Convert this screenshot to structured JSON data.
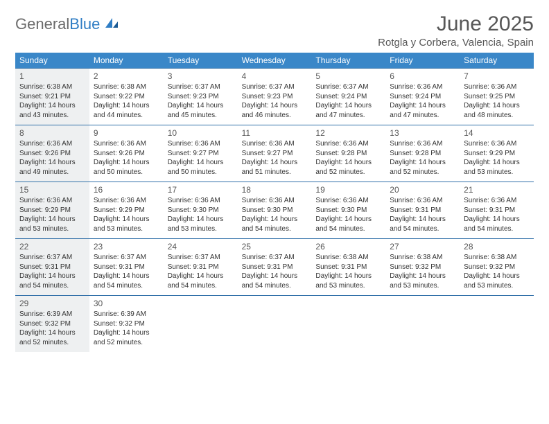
{
  "brand": {
    "part1": "General",
    "part2": "Blue"
  },
  "title": "June 2025",
  "location": "Rotgla y Corbera, Valencia, Spain",
  "colors": {
    "header_bg": "#3a87c8",
    "border": "#2f6fa8",
    "shaded_bg": "#eef0f1",
    "text": "#333333",
    "title_text": "#575757",
    "logo_gray": "#6b6b6b",
    "logo_blue": "#2f7dc4",
    "background": "#ffffff"
  },
  "typography": {
    "title_fontsize": 30,
    "location_fontsize": 15,
    "dayhead_fontsize": 12,
    "daynum_fontsize": 12,
    "body_fontsize": 10
  },
  "layout": {
    "columns": 7,
    "rows": 5,
    "cell_min_height": 82
  },
  "shaded_days": [
    1,
    8,
    15,
    22,
    29
  ],
  "weekdays": [
    "Sunday",
    "Monday",
    "Tuesday",
    "Wednesday",
    "Thursday",
    "Friday",
    "Saturday"
  ],
  "days": [
    {
      "n": 1,
      "sunrise": "6:38 AM",
      "sunset": "9:21 PM",
      "daylight": "14 hours and 43 minutes."
    },
    {
      "n": 2,
      "sunrise": "6:38 AM",
      "sunset": "9:22 PM",
      "daylight": "14 hours and 44 minutes."
    },
    {
      "n": 3,
      "sunrise": "6:37 AM",
      "sunset": "9:23 PM",
      "daylight": "14 hours and 45 minutes."
    },
    {
      "n": 4,
      "sunrise": "6:37 AM",
      "sunset": "9:23 PM",
      "daylight": "14 hours and 46 minutes."
    },
    {
      "n": 5,
      "sunrise": "6:37 AM",
      "sunset": "9:24 PM",
      "daylight": "14 hours and 47 minutes."
    },
    {
      "n": 6,
      "sunrise": "6:36 AM",
      "sunset": "9:24 PM",
      "daylight": "14 hours and 47 minutes."
    },
    {
      "n": 7,
      "sunrise": "6:36 AM",
      "sunset": "9:25 PM",
      "daylight": "14 hours and 48 minutes."
    },
    {
      "n": 8,
      "sunrise": "6:36 AM",
      "sunset": "9:26 PM",
      "daylight": "14 hours and 49 minutes."
    },
    {
      "n": 9,
      "sunrise": "6:36 AM",
      "sunset": "9:26 PM",
      "daylight": "14 hours and 50 minutes."
    },
    {
      "n": 10,
      "sunrise": "6:36 AM",
      "sunset": "9:27 PM",
      "daylight": "14 hours and 50 minutes."
    },
    {
      "n": 11,
      "sunrise": "6:36 AM",
      "sunset": "9:27 PM",
      "daylight": "14 hours and 51 minutes."
    },
    {
      "n": 12,
      "sunrise": "6:36 AM",
      "sunset": "9:28 PM",
      "daylight": "14 hours and 52 minutes."
    },
    {
      "n": 13,
      "sunrise": "6:36 AM",
      "sunset": "9:28 PM",
      "daylight": "14 hours and 52 minutes."
    },
    {
      "n": 14,
      "sunrise": "6:36 AM",
      "sunset": "9:29 PM",
      "daylight": "14 hours and 53 minutes."
    },
    {
      "n": 15,
      "sunrise": "6:36 AM",
      "sunset": "9:29 PM",
      "daylight": "14 hours and 53 minutes."
    },
    {
      "n": 16,
      "sunrise": "6:36 AM",
      "sunset": "9:29 PM",
      "daylight": "14 hours and 53 minutes."
    },
    {
      "n": 17,
      "sunrise": "6:36 AM",
      "sunset": "9:30 PM",
      "daylight": "14 hours and 53 minutes."
    },
    {
      "n": 18,
      "sunrise": "6:36 AM",
      "sunset": "9:30 PM",
      "daylight": "14 hours and 54 minutes."
    },
    {
      "n": 19,
      "sunrise": "6:36 AM",
      "sunset": "9:30 PM",
      "daylight": "14 hours and 54 minutes."
    },
    {
      "n": 20,
      "sunrise": "6:36 AM",
      "sunset": "9:31 PM",
      "daylight": "14 hours and 54 minutes."
    },
    {
      "n": 21,
      "sunrise": "6:36 AM",
      "sunset": "9:31 PM",
      "daylight": "14 hours and 54 minutes."
    },
    {
      "n": 22,
      "sunrise": "6:37 AM",
      "sunset": "9:31 PM",
      "daylight": "14 hours and 54 minutes."
    },
    {
      "n": 23,
      "sunrise": "6:37 AM",
      "sunset": "9:31 PM",
      "daylight": "14 hours and 54 minutes."
    },
    {
      "n": 24,
      "sunrise": "6:37 AM",
      "sunset": "9:31 PM",
      "daylight": "14 hours and 54 minutes."
    },
    {
      "n": 25,
      "sunrise": "6:37 AM",
      "sunset": "9:31 PM",
      "daylight": "14 hours and 54 minutes."
    },
    {
      "n": 26,
      "sunrise": "6:38 AM",
      "sunset": "9:31 PM",
      "daylight": "14 hours and 53 minutes."
    },
    {
      "n": 27,
      "sunrise": "6:38 AM",
      "sunset": "9:32 PM",
      "daylight": "14 hours and 53 minutes."
    },
    {
      "n": 28,
      "sunrise": "6:38 AM",
      "sunset": "9:32 PM",
      "daylight": "14 hours and 53 minutes."
    },
    {
      "n": 29,
      "sunrise": "6:39 AM",
      "sunset": "9:32 PM",
      "daylight": "14 hours and 52 minutes."
    },
    {
      "n": 30,
      "sunrise": "6:39 AM",
      "sunset": "9:32 PM",
      "daylight": "14 hours and 52 minutes."
    }
  ],
  "labels": {
    "sunrise": "Sunrise:",
    "sunset": "Sunset:",
    "daylight": "Daylight:"
  }
}
